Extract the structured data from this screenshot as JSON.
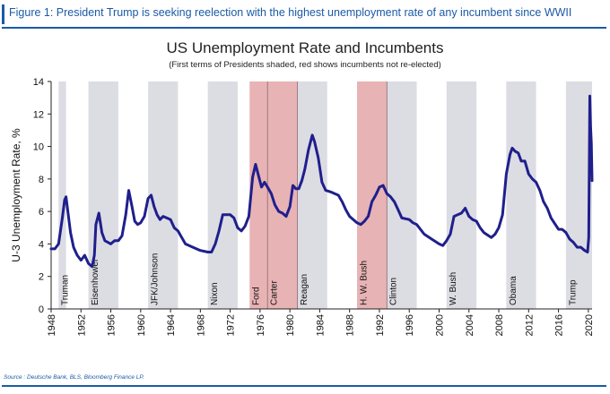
{
  "header": {
    "figure_title": "Figure 1: President Trump is seeking reelection with the highest unemployment rate of any incumbent since WWII"
  },
  "source": "Source : Deutsche Bank, BLS, Bloomberg Finance LP.",
  "colors": {
    "line": "#1f1f8c",
    "shade_reelected": "#dcdce3",
    "shade_not_reelected": "#e8b3b5",
    "accent": "#1a5aa6"
  },
  "chart_data": {
    "type": "line",
    "title": "US Unemployment Rate and Incumbents",
    "subtitle": "(First terms of Presidents shaded, red shows incumbents not re-elected)",
    "ylabel": "U-3 Unemployment Rate, %",
    "xlabel": "",
    "xlim": [
      1948,
      2020.5
    ],
    "ylim": [
      0,
      14
    ],
    "xticks": [
      1948,
      1952,
      1956,
      1960,
      1964,
      1968,
      1972,
      1976,
      1980,
      1984,
      1988,
      1992,
      1996,
      2000,
      2004,
      2008,
      2012,
      2016,
      2020
    ],
    "yticks": [
      0,
      2,
      4,
      6,
      8,
      10,
      12,
      14
    ],
    "grid": false,
    "incumbent_terms": [
      {
        "name": "Truman",
        "start": 1949,
        "end": 1950,
        "not_reelected": false
      },
      {
        "name": "Eisenhower",
        "start": 1953,
        "end": 1957,
        "not_reelected": false
      },
      {
        "name": "JFK/Johnson",
        "start": 1961,
        "end": 1965,
        "not_reelected": false
      },
      {
        "name": "Nixon",
        "start": 1969,
        "end": 1973,
        "not_reelected": false
      },
      {
        "name": "Ford",
        "start": 1974.6,
        "end": 1977,
        "not_reelected": true
      },
      {
        "name": "Carter",
        "start": 1977,
        "end": 1981,
        "not_reelected": true
      },
      {
        "name": "Reagan",
        "start": 1981,
        "end": 1985,
        "not_reelected": false
      },
      {
        "name": "H. W. Bush",
        "start": 1989,
        "end": 1993,
        "not_reelected": true
      },
      {
        "name": "Clinton",
        "start": 1993,
        "end": 1997,
        "not_reelected": false
      },
      {
        "name": "W. Bush",
        "start": 2001,
        "end": 2005,
        "not_reelected": false
      },
      {
        "name": "Obama",
        "start": 2009,
        "end": 2013,
        "not_reelected": false
      },
      {
        "name": "Trump",
        "start": 2017,
        "end": 2020.5,
        "not_reelected": false
      }
    ],
    "series": [
      {
        "x": [
          1948.0,
          1948.5,
          1949.0,
          1949.5,
          1949.8,
          1950.0,
          1950.3,
          1950.6,
          1951.0,
          1951.5,
          1952.0,
          1952.5,
          1953.0,
          1953.5,
          1953.8,
          1954.0,
          1954.4,
          1954.8,
          1955.2,
          1955.6,
          1956.0,
          1956.5,
          1957.0,
          1957.5,
          1958.0,
          1958.4,
          1958.8,
          1959.2,
          1959.6,
          1960.0,
          1960.5,
          1961.0,
          1961.4,
          1961.8,
          1962.2,
          1962.6,
          1963.0,
          1963.5,
          1964.0,
          1964.5,
          1965.0,
          1965.5,
          1966.0,
          1967.0,
          1968.0,
          1969.0,
          1969.5,
          1970.0,
          1970.5,
          1971.0,
          1972.0,
          1972.5,
          1973.0,
          1973.5,
          1974.0,
          1974.5,
          1975.0,
          1975.4,
          1975.8,
          1976.2,
          1976.6,
          1977.0,
          1977.5,
          1978.0,
          1978.5,
          1979.0,
          1979.5,
          1980.0,
          1980.4,
          1980.8,
          1981.2,
          1981.6,
          1982.0,
          1982.5,
          1983.0,
          1983.3,
          1983.8,
          1984.3,
          1984.8,
          1985.5,
          1986.0,
          1986.5,
          1987.0,
          1987.5,
          1988.0,
          1988.5,
          1989.0,
          1989.5,
          1990.0,
          1990.5,
          1991.0,
          1991.5,
          1992.0,
          1992.5,
          1993.0,
          1993.5,
          1994.0,
          1994.5,
          1995.0,
          1996.0,
          1996.5,
          1997.0,
          1998.0,
          1999.0,
          2000.0,
          2000.5,
          2001.0,
          2001.5,
          2002.0,
          2002.5,
          2003.0,
          2003.5,
          2004.0,
          2004.5,
          2005.0,
          2005.5,
          2006.0,
          2007.0,
          2007.5,
          2008.0,
          2008.5,
          2009.0,
          2009.5,
          2009.8,
          2010.2,
          2010.6,
          2011.0,
          2011.5,
          2012.0,
          2012.5,
          2013.0,
          2013.5,
          2014.0,
          2014.5,
          2015.0,
          2016.0,
          2016.5,
          2017.0,
          2017.5,
          2018.0,
          2018.5,
          2019.0,
          2019.5,
          2019.9,
          2020.05,
          2020.2,
          2020.3,
          2020.4,
          2020.5
        ],
        "values": [
          3.7,
          3.7,
          4.0,
          5.6,
          6.7,
          6.9,
          5.8,
          4.7,
          3.8,
          3.3,
          3.0,
          3.3,
          2.8,
          2.6,
          3.3,
          5.2,
          5.9,
          4.7,
          4.2,
          4.1,
          4.0,
          4.2,
          4.2,
          4.5,
          5.8,
          7.3,
          6.4,
          5.4,
          5.2,
          5.3,
          5.7,
          6.8,
          7.0,
          6.3,
          5.8,
          5.5,
          5.7,
          5.6,
          5.5,
          5.0,
          4.8,
          4.4,
          4.0,
          3.8,
          3.6,
          3.5,
          3.5,
          4.0,
          4.8,
          5.8,
          5.8,
          5.6,
          5.0,
          4.8,
          5.1,
          5.7,
          8.1,
          8.9,
          8.2,
          7.5,
          7.8,
          7.5,
          7.1,
          6.4,
          6.0,
          5.9,
          5.7,
          6.3,
          7.6,
          7.4,
          7.4,
          7.9,
          8.6,
          9.8,
          10.7,
          10.3,
          9.3,
          7.8,
          7.3,
          7.2,
          7.1,
          7.0,
          6.6,
          6.1,
          5.7,
          5.5,
          5.3,
          5.2,
          5.4,
          5.7,
          6.6,
          7.0,
          7.5,
          7.6,
          7.1,
          6.9,
          6.6,
          6.1,
          5.6,
          5.5,
          5.3,
          5.2,
          4.6,
          4.3,
          4.0,
          3.9,
          4.2,
          4.6,
          5.7,
          5.8,
          5.9,
          6.2,
          5.7,
          5.5,
          5.4,
          5.0,
          4.7,
          4.4,
          4.6,
          5.0,
          5.8,
          8.3,
          9.5,
          9.9,
          9.7,
          9.6,
          9.1,
          9.1,
          8.3,
          8.0,
          7.8,
          7.3,
          6.6,
          6.2,
          5.6,
          4.9,
          4.9,
          4.7,
          4.3,
          4.1,
          3.8,
          3.8,
          3.6,
          3.5,
          4.4,
          13.1,
          11.3,
          10.2,
          7.9
        ]
      }
    ]
  }
}
